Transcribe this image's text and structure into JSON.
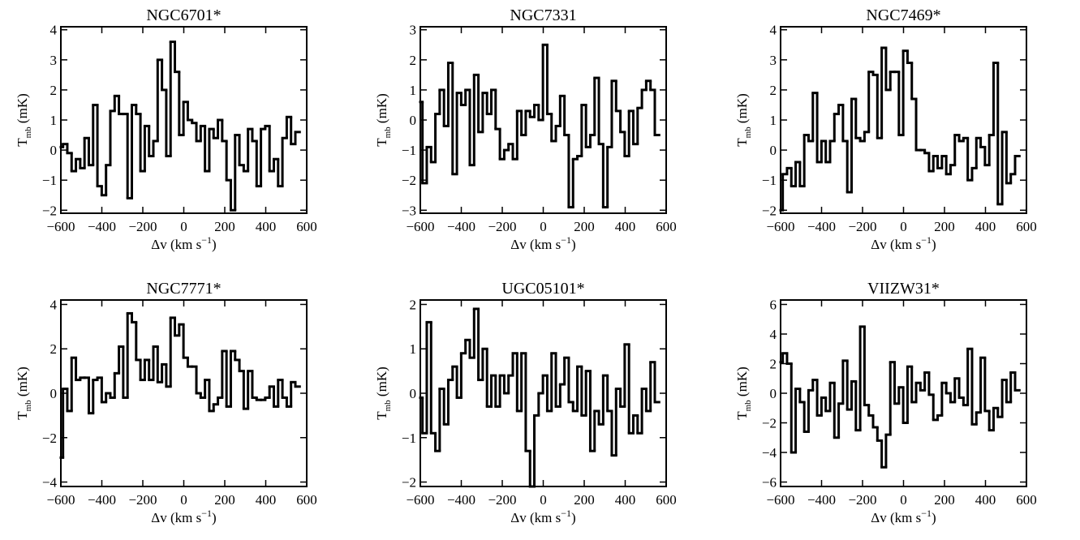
{
  "chart_data": [
    {
      "type": "line",
      "drawstyle": "steps-mid",
      "title": "NGC6701*",
      "xlabel": [
        "Δv (km s",
        "−1",
        ")"
      ],
      "ylabel": [
        "T",
        "mb",
        " (mK)"
      ],
      "xlim": [
        -600,
        600
      ],
      "xticks": [
        {
          "value": -600,
          "label": "−600"
        },
        {
          "value": -400,
          "label": "−400"
        },
        {
          "value": -200,
          "label": "−200"
        },
        0,
        200,
        400,
        600
      ],
      "ylim": [
        -2.1,
        4.1
      ],
      "yticks": [
        {
          "value": -2,
          "label": "−2"
        },
        {
          "value": -1,
          "label": "−1"
        },
        0,
        1,
        2,
        3,
        4
      ],
      "x": [
        -600,
        -579,
        -558,
        -537,
        -516,
        -495,
        -474,
        -453,
        -432,
        -411,
        -390,
        -369,
        -348,
        -327,
        -306,
        -285,
        -264,
        -243,
        -222,
        -201,
        -180,
        -159,
        -138,
        -117,
        -96,
        -75,
        -54,
        -33,
        -12,
        9,
        30,
        51,
        72,
        93,
        114,
        135,
        156,
        177,
        198,
        219,
        240,
        261,
        282,
        303,
        324,
        345,
        366,
        387,
        408,
        429,
        450,
        471,
        492,
        513,
        534,
        555
      ],
      "series": [
        {
          "color": "#000000",
          "values": [
            0.1,
            0.2,
            -0.1,
            -0.7,
            -0.3,
            -0.6,
            0.4,
            -0.5,
            1.5,
            -1.2,
            -1.5,
            -0.5,
            1.3,
            1.8,
            1.2,
            1.2,
            -1.6,
            1.5,
            1.2,
            -0.7,
            0.8,
            -0.2,
            0.3,
            3.0,
            2.0,
            -0.2,
            3.6,
            2.6,
            0.5,
            1.6,
            1.0,
            0.9,
            0.3,
            0.8,
            -0.7,
            0.7,
            0.4,
            1.0,
            0.3,
            -1.0,
            -2.0,
            0.5,
            -0.5,
            -0.7,
            0.7,
            0.3,
            -1.2,
            0.7,
            0.8,
            -0.7,
            -0.3,
            -1.2,
            0.4,
            1.1,
            0.2,
            0.6
          ]
        }
      ]
    },
    {
      "type": "line",
      "drawstyle": "steps-mid",
      "title": "NGC7331",
      "xlabel": [
        "Δv (km s",
        "−1",
        ")"
      ],
      "ylabel": [
        "T",
        "mb",
        " (mK)"
      ],
      "xlim": [
        -600,
        600
      ],
      "xticks": [
        {
          "value": -600,
          "label": "−600"
        },
        {
          "value": -400,
          "label": "−400"
        },
        {
          "value": -200,
          "label": "−200"
        },
        0,
        200,
        400,
        600
      ],
      "ylim": [
        -3.1,
        3.1
      ],
      "yticks": [
        {
          "value": -3,
          "label": "−3"
        },
        {
          "value": -2,
          "label": "−2"
        },
        {
          "value": -1,
          "label": "−1"
        },
        0,
        1,
        2,
        3
      ],
      "x": [
        -600,
        -579,
        -558,
        -537,
        -516,
        -495,
        -474,
        -453,
        -432,
        -411,
        -390,
        -369,
        -348,
        -327,
        -306,
        -285,
        -264,
        -243,
        -222,
        -201,
        -180,
        -159,
        -138,
        -117,
        -96,
        -75,
        -54,
        -33,
        -12,
        9,
        30,
        51,
        72,
        93,
        114,
        135,
        156,
        177,
        198,
        219,
        240,
        261,
        282,
        303,
        324,
        345,
        366,
        387,
        408,
        429,
        450,
        471,
        492,
        513,
        534,
        555
      ],
      "series": [
        {
          "color": "#000000",
          "values": [
            0.6,
            -2.1,
            -0.9,
            -1.4,
            0.2,
            1.0,
            -0.2,
            1.9,
            -1.8,
            0.9,
            0.5,
            1.0,
            -1.5,
            1.5,
            -0.4,
            0.9,
            0.2,
            1.0,
            -0.3,
            -1.3,
            -1.0,
            -0.8,
            -1.3,
            0.3,
            -0.5,
            0.3,
            0.1,
            0.5,
            0.0,
            2.5,
            0.2,
            -0.7,
            -0.2,
            0.8,
            -0.5,
            -2.9,
            -1.3,
            -1.2,
            0.5,
            -0.9,
            -0.5,
            1.4,
            -0.8,
            -2.9,
            -0.9,
            1.3,
            0.3,
            -0.4,
            -1.2,
            0.3,
            -0.8,
            0.4,
            1.0,
            1.3,
            1.0,
            -0.5
          ]
        }
      ]
    },
    {
      "type": "line",
      "drawstyle": "steps-mid",
      "title": "NGC7469*",
      "xlabel": [
        "Δv (km s",
        "−1",
        ")"
      ],
      "ylabel": [
        "T",
        "mb",
        " (mK)"
      ],
      "xlim": [
        -600,
        600
      ],
      "xticks": [
        {
          "value": -600,
          "label": "−600"
        },
        {
          "value": -400,
          "label": "−400"
        },
        {
          "value": -200,
          "label": "−200"
        },
        0,
        200,
        400,
        600
      ],
      "ylim": [
        -2.1,
        4.1
      ],
      "yticks": [
        {
          "value": -2,
          "label": "−2"
        },
        {
          "value": -1,
          "label": "−1"
        },
        0,
        1,
        2,
        3,
        4
      ],
      "x": [
        -600,
        -579,
        -558,
        -537,
        -516,
        -495,
        -474,
        -453,
        -432,
        -411,
        -390,
        -369,
        -348,
        -327,
        -306,
        -285,
        -264,
        -243,
        -222,
        -201,
        -180,
        -159,
        -138,
        -117,
        -96,
        -75,
        -54,
        -33,
        -12,
        9,
        30,
        51,
        72,
        93,
        114,
        135,
        156,
        177,
        198,
        219,
        240,
        261,
        282,
        303,
        324,
        345,
        366,
        387,
        408,
        429,
        450,
        471,
        492,
        513,
        534,
        555
      ],
      "series": [
        {
          "color": "#000000",
          "values": [
            -2.0,
            -0.8,
            -0.6,
            -1.2,
            -0.4,
            -1.2,
            0.5,
            0.3,
            1.9,
            -0.4,
            0.3,
            -0.4,
            0.3,
            1.2,
            1.5,
            0.3,
            -1.4,
            1.7,
            0.4,
            0.3,
            0.6,
            2.6,
            2.5,
            0.4,
            3.4,
            2.0,
            2.6,
            2.6,
            0.5,
            3.3,
            2.9,
            1.7,
            0.0,
            0.0,
            -0.1,
            -0.7,
            -0.2,
            -0.6,
            -0.2,
            -0.8,
            -0.5,
            0.5,
            0.3,
            0.4,
            -1.0,
            -0.6,
            0.4,
            0.1,
            -0.5,
            0.5,
            2.9,
            -1.8,
            0.6,
            -1.1,
            -0.8,
            -0.2
          ]
        }
      ]
    },
    {
      "type": "line",
      "drawstyle": "steps-mid",
      "title": "NGC7771*",
      "xlabel": [
        "Δv (km s",
        "−1",
        ")"
      ],
      "ylabel": [
        "T",
        "mb",
        " (mK)"
      ],
      "xlim": [
        -600,
        600
      ],
      "xticks": [
        {
          "value": -600,
          "label": "−600"
        },
        {
          "value": -400,
          "label": "−400"
        },
        {
          "value": -200,
          "label": "−200"
        },
        0,
        200,
        400,
        600
      ],
      "ylim": [
        -4.2,
        4.2
      ],
      "yticks": [
        {
          "value": -4,
          "label": "−4"
        },
        {
          "value": -2,
          "label": "−2"
        },
        0,
        2,
        4
      ],
      "x": [
        -600,
        -579,
        -558,
        -537,
        -516,
        -495,
        -474,
        -453,
        -432,
        -411,
        -390,
        -369,
        -348,
        -327,
        -306,
        -285,
        -264,
        -243,
        -222,
        -201,
        -180,
        -159,
        -138,
        -117,
        -96,
        -75,
        -54,
        -33,
        -12,
        9,
        30,
        51,
        72,
        93,
        114,
        135,
        156,
        177,
        198,
        219,
        240,
        261,
        282,
        303,
        324,
        345,
        366,
        387,
        408,
        429,
        450,
        471,
        492,
        513,
        534,
        555
      ],
      "series": [
        {
          "color": "#000000",
          "values": [
            -2.9,
            0.2,
            -0.8,
            1.6,
            0.6,
            0.7,
            0.7,
            -0.9,
            0.6,
            0.7,
            -0.4,
            0.0,
            -0.2,
            0.9,
            2.1,
            -0.2,
            3.6,
            3.2,
            1.5,
            0.6,
            1.5,
            0.6,
            2.1,
            0.5,
            1.3,
            0.3,
            3.4,
            2.6,
            3.1,
            1.6,
            1.2,
            1.2,
            0.0,
            -0.2,
            0.6,
            -0.8,
            -0.5,
            -0.2,
            1.9,
            -0.6,
            1.9,
            1.5,
            1.0,
            -0.7,
            1.0,
            -0.2,
            -0.3,
            -0.3,
            -0.2,
            0.3,
            -0.6,
            0.6,
            -0.2,
            -0.6,
            0.5,
            0.3
          ]
        }
      ]
    },
    {
      "type": "line",
      "drawstyle": "steps-mid",
      "title": "UGC05101*",
      "xlabel": [
        "Δv (km s",
        "−1",
        ")"
      ],
      "ylabel": [
        "T",
        "mb",
        " (mK)"
      ],
      "xlim": [
        -600,
        600
      ],
      "xticks": [
        {
          "value": -600,
          "label": "−600"
        },
        {
          "value": -400,
          "label": "−400"
        },
        {
          "value": -200,
          "label": "−200"
        },
        0,
        200,
        400,
        600
      ],
      "ylim": [
        -2.1,
        2.1
      ],
      "yticks": [
        {
          "value": -2,
          "label": "−2"
        },
        {
          "value": -1,
          "label": "−1"
        },
        0,
        1,
        2
      ],
      "x": [
        -600,
        -579,
        -558,
        -537,
        -516,
        -495,
        -474,
        -453,
        -432,
        -411,
        -390,
        -369,
        -348,
        -327,
        -306,
        -285,
        -264,
        -243,
        -222,
        -201,
        -180,
        -159,
        -138,
        -117,
        -96,
        -75,
        -54,
        -33,
        -12,
        9,
        30,
        51,
        72,
        93,
        114,
        135,
        156,
        177,
        198,
        219,
        240,
        261,
        282,
        303,
        324,
        345,
        366,
        387,
        408,
        429,
        450,
        471,
        492,
        513,
        534,
        555
      ],
      "series": [
        {
          "color": "#000000",
          "values": [
            -0.1,
            -0.9,
            1.6,
            -0.9,
            -1.3,
            0.1,
            -0.7,
            0.3,
            0.6,
            -0.1,
            0.9,
            1.2,
            0.8,
            1.9,
            0.3,
            1.0,
            -0.3,
            0.4,
            -0.3,
            0.4,
            0.0,
            0.4,
            0.9,
            -0.4,
            0.9,
            -1.3,
            -2.1,
            -0.5,
            0.0,
            0.4,
            -0.4,
            0.9,
            -0.3,
            0.2,
            0.8,
            -0.2,
            -0.4,
            0.6,
            -0.5,
            0.5,
            -1.3,
            -0.4,
            -0.7,
            0.4,
            -0.4,
            -1.4,
            0.1,
            -0.3,
            1.1,
            -0.9,
            -0.5,
            -0.9,
            0.1,
            -0.4,
            0.7,
            -0.2
          ]
        }
      ]
    },
    {
      "type": "line",
      "drawstyle": "steps-mid",
      "title": "VIIZW31*",
      "xlabel": [
        "Δv (km s",
        "−1",
        ")"
      ],
      "ylabel": [
        "T",
        "mb",
        " (mK)"
      ],
      "xlim": [
        -600,
        600
      ],
      "xticks": [
        {
          "value": -600,
          "label": "−600"
        },
        {
          "value": -400,
          "label": "−400"
        },
        {
          "value": -200,
          "label": "−200"
        },
        0,
        200,
        400,
        600
      ],
      "ylim": [
        -6.3,
        6.3
      ],
      "yticks": [
        {
          "value": -6,
          "label": "−6"
        },
        {
          "value": -4,
          "label": "−4"
        },
        {
          "value": -2,
          "label": "−2"
        },
        0,
        2,
        4,
        6
      ],
      "x": [
        -600,
        -579,
        -558,
        -537,
        -516,
        -495,
        -474,
        -453,
        -432,
        -411,
        -390,
        -369,
        -348,
        -327,
        -306,
        -285,
        -264,
        -243,
        -222,
        -201,
        -180,
        -159,
        -138,
        -117,
        -96,
        -75,
        -54,
        -33,
        -12,
        9,
        30,
        51,
        72,
        93,
        114,
        135,
        156,
        177,
        198,
        219,
        240,
        261,
        282,
        303,
        324,
        345,
        366,
        387,
        408,
        429,
        450,
        471,
        492,
        513,
        534,
        555
      ],
      "series": [
        {
          "color": "#000000",
          "values": [
            2.1,
            2.7,
            2.0,
            -4.0,
            0.3,
            -0.6,
            -2.6,
            0.2,
            0.9,
            -1.5,
            -0.3,
            -1.2,
            0.7,
            -3.0,
            -0.7,
            2.2,
            -1.1,
            0.8,
            -2.5,
            4.5,
            -0.8,
            -1.5,
            -2.3,
            -3.2,
            -5.0,
            -2.8,
            2.1,
            -0.7,
            0.4,
            -2.0,
            1.8,
            -0.6,
            0.7,
            0.2,
            1.4,
            -0.1,
            -1.8,
            -1.5,
            0.7,
            0.0,
            -0.6,
            1.0,
            -0.3,
            -0.8,
            3.0,
            -2.1,
            -1.3,
            2.4,
            -1.2,
            -2.5,
            -1.0,
            -1.6,
            0.9,
            -0.6,
            1.4,
            0.2
          ]
        }
      ]
    }
  ]
}
